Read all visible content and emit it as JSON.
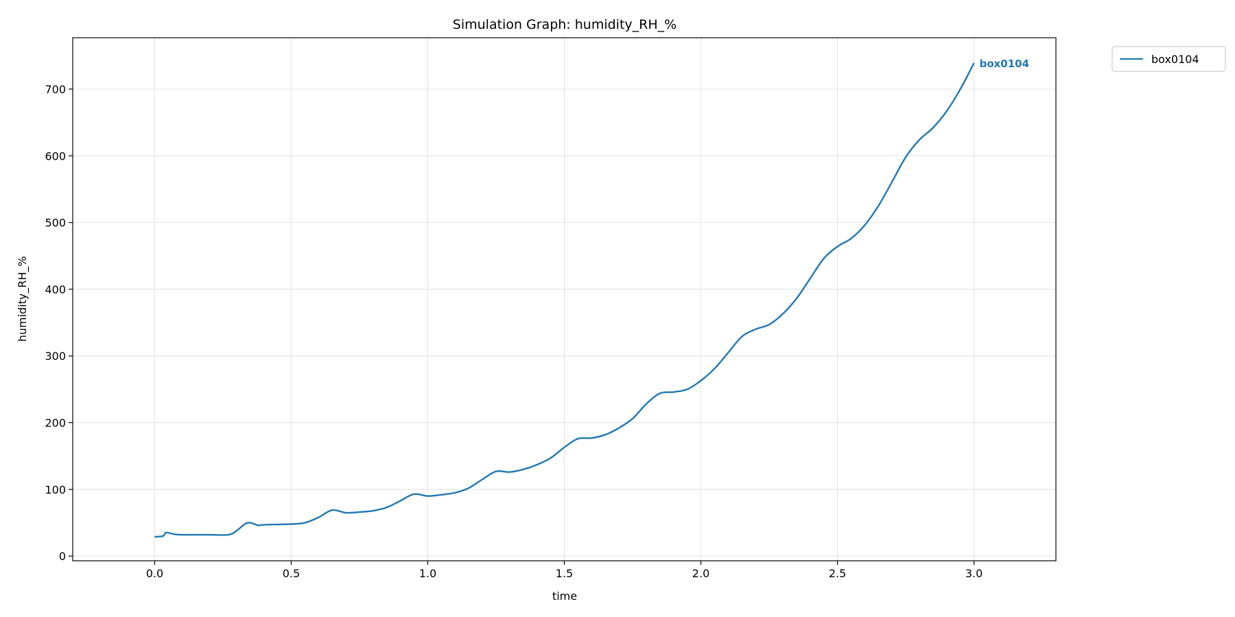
{
  "chart_data": {
    "type": "line",
    "title": "Simulation Graph: humidity_RH_%",
    "xlabel": "time",
    "ylabel": "humidity_RH_%",
    "xlim": [
      -0.3,
      3.3
    ],
    "ylim": [
      -7,
      777
    ],
    "xticks": [
      0.0,
      0.5,
      1.0,
      1.5,
      2.0,
      2.5,
      3.0
    ],
    "xtick_labels": [
      "0.0",
      "0.5",
      "1.0",
      "1.5",
      "2.0",
      "2.5",
      "3.0"
    ],
    "yticks": [
      0,
      100,
      200,
      300,
      400,
      500,
      600,
      700
    ],
    "ytick_labels": [
      "0",
      "100",
      "200",
      "300",
      "400",
      "500",
      "600",
      "700"
    ],
    "grid": true,
    "legend_position": "outside-top-right",
    "series": [
      {
        "name": "box0104",
        "color": "#1f77b4",
        "end_label": "box0104",
        "x": [
          0,
          0.03,
          0.04,
          0.05,
          0.07,
          0.1,
          0.2,
          0.27,
          0.3,
          0.33,
          0.35,
          0.38,
          0.4,
          0.5,
          0.55,
          0.6,
          0.65,
          0.7,
          0.75,
          0.8,
          0.85,
          0.9,
          0.95,
          1.0,
          1.05,
          1.1,
          1.15,
          1.2,
          1.25,
          1.3,
          1.35,
          1.4,
          1.45,
          1.5,
          1.55,
          1.6,
          1.65,
          1.7,
          1.75,
          1.8,
          1.85,
          1.9,
          1.95,
          2.0,
          2.05,
          2.1,
          2.15,
          2.2,
          2.25,
          2.3,
          2.35,
          2.4,
          2.45,
          2.5,
          2.55,
          2.6,
          2.65,
          2.7,
          2.75,
          2.8,
          2.85,
          2.9,
          2.95,
          3.0
        ],
        "y": [
          29,
          30,
          35,
          35,
          33,
          32,
          32,
          32,
          38,
          48,
          50,
          46,
          47,
          48,
          50,
          58,
          69,
          65,
          66,
          68,
          73,
          83,
          93,
          90,
          92,
          95,
          102,
          115,
          127,
          126,
          130,
          137,
          147,
          163,
          176,
          177,
          182,
          192,
          206,
          228,
          244,
          246,
          250,
          263,
          281,
          305,
          329,
          340,
          347,
          363,
          386,
          416,
          446,
          464,
          476,
          496,
          525,
          561,
          598,
          624,
          642,
          667,
          700,
          739
        ]
      }
    ]
  }
}
